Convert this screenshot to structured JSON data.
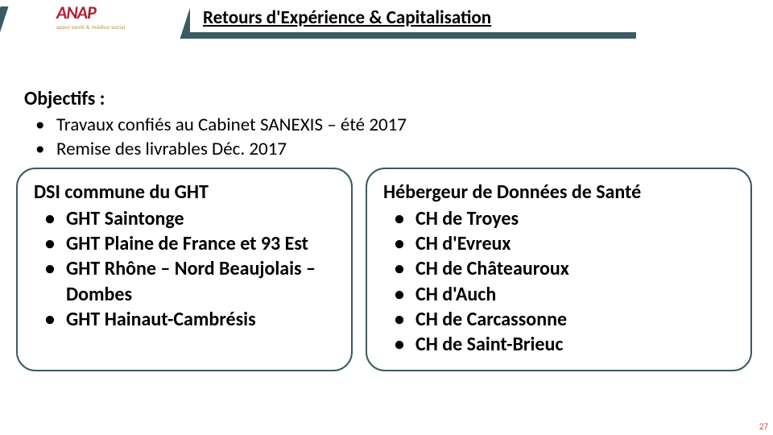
{
  "header": {
    "logo_text": "ANAP",
    "logo_subtitle": "appui santé & médico-social",
    "banner_title": "Retours d'Expérience & Capitalisation",
    "bar_color": "#3a5b63",
    "logo_color": "#b01f2e"
  },
  "objectifs": {
    "title": "Objectifs :",
    "items": [
      "Travaux confiés au Cabinet SANEXIS – été 2017",
      "Remise des livrables Déc. 2017"
    ]
  },
  "box_left": {
    "title": "DSI commune du GHT",
    "items": [
      "GHT Saintonge",
      "GHT Plaine de France et 93 Est",
      "GHT Rhône – Nord Beaujolais – Dombes",
      "GHT Hainaut-Cambrésis"
    ]
  },
  "box_right": {
    "title": "Hébergeur de Données de Santé",
    "items": [
      "CH de Troyes",
      "CH d'Evreux",
      "CH de Châteauroux",
      "CH d'Auch",
      "CH de Carcassonne",
      "CH de Saint-Brieuc"
    ]
  },
  "page_number": "27",
  "style": {
    "title_fontsize": 23,
    "body_fontsize": 24,
    "box_border_color": "#3a5b63",
    "box_border_radius": 24,
    "text_color": "#000000",
    "pagenum_color": "#c0504d"
  }
}
